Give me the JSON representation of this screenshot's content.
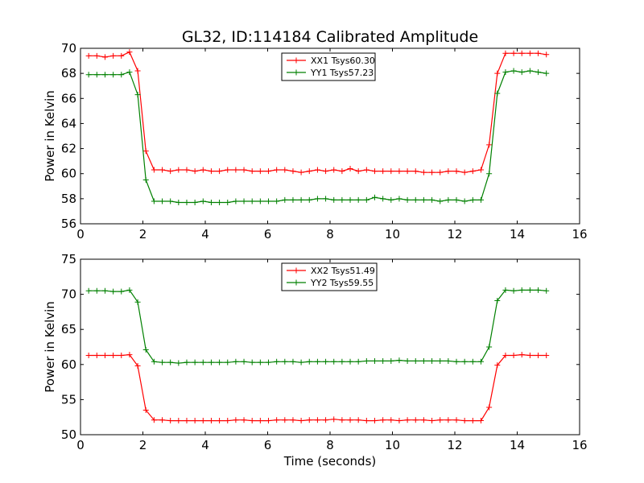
{
  "figure": {
    "title": "GL32, ID:114184 Calibrated Amplitude",
    "xlabel": "Time (seconds)"
  },
  "chart_data": [
    {
      "type": "line",
      "ylabel": "Power in Kelvin",
      "xlim": [
        0,
        16
      ],
      "ylim": [
        56,
        70
      ],
      "xticks": [
        0,
        2,
        4,
        6,
        8,
        10,
        12,
        14,
        16
      ],
      "yticks": [
        56,
        58,
        60,
        62,
        64,
        66,
        68,
        70
      ],
      "legend_position": "top-center",
      "grid": false,
      "x": [
        0.262,
        0.524,
        0.786,
        1.048,
        1.31,
        1.572,
        1.834,
        2.096,
        2.358,
        2.62,
        2.882,
        3.144,
        3.406,
        3.668,
        3.93,
        4.192,
        4.454,
        4.716,
        4.978,
        5.24,
        5.502,
        5.764,
        6.026,
        6.288,
        6.55,
        6.812,
        7.074,
        7.336,
        7.598,
        7.86,
        8.122,
        8.384,
        8.646,
        8.908,
        9.17,
        9.432,
        9.694,
        9.956,
        10.218,
        10.48,
        10.742,
        11.004,
        11.266,
        11.528,
        11.79,
        12.052,
        12.314,
        12.576,
        12.838,
        13.1,
        13.362,
        13.624,
        13.886,
        14.148,
        14.41,
        14.672,
        14.934
      ],
      "series": [
        {
          "name": "XX1 Tsys60.30",
          "color": "#ff0000",
          "values": [
            69.4,
            69.4,
            69.3,
            69.4,
            69.4,
            69.7,
            68.2,
            61.8,
            60.3,
            60.3,
            60.2,
            60.3,
            60.3,
            60.2,
            60.3,
            60.2,
            60.2,
            60.3,
            60.3,
            60.3,
            60.2,
            60.2,
            60.2,
            60.3,
            60.3,
            60.2,
            60.1,
            60.2,
            60.3,
            60.2,
            60.3,
            60.2,
            60.4,
            60.2,
            60.3,
            60.2,
            60.2,
            60.2,
            60.2,
            60.2,
            60.2,
            60.1,
            60.1,
            60.1,
            60.2,
            60.2,
            60.1,
            60.2,
            60.3,
            62.3,
            68.0,
            69.6,
            69.6,
            69.6,
            69.6,
            69.6,
            69.5
          ]
        },
        {
          "name": "YY1 Tsys57.23",
          "color": "#008000",
          "values": [
            67.9,
            67.9,
            67.9,
            67.9,
            67.9,
            68.1,
            66.3,
            59.5,
            57.8,
            57.8,
            57.8,
            57.7,
            57.7,
            57.7,
            57.8,
            57.7,
            57.7,
            57.7,
            57.8,
            57.8,
            57.8,
            57.8,
            57.8,
            57.8,
            57.9,
            57.9,
            57.9,
            57.9,
            58.0,
            58.0,
            57.9,
            57.9,
            57.9,
            57.9,
            57.9,
            58.1,
            58.0,
            57.9,
            58.0,
            57.9,
            57.9,
            57.9,
            57.9,
            57.8,
            57.9,
            57.9,
            57.8,
            57.9,
            57.9,
            60.0,
            66.4,
            68.1,
            68.2,
            68.1,
            68.2,
            68.1,
            68.0
          ]
        }
      ]
    },
    {
      "type": "line",
      "ylabel": "Power in Kelvin",
      "xlabel": "Time (seconds)",
      "xlim": [
        0,
        16
      ],
      "ylim": [
        50,
        75
      ],
      "xticks": [
        0,
        2,
        4,
        6,
        8,
        10,
        12,
        14,
        16
      ],
      "yticks": [
        50,
        55,
        60,
        65,
        70,
        75
      ],
      "legend_position": "top-center",
      "grid": false,
      "x": [
        0.262,
        0.524,
        0.786,
        1.048,
        1.31,
        1.572,
        1.834,
        2.096,
        2.358,
        2.62,
        2.882,
        3.144,
        3.406,
        3.668,
        3.93,
        4.192,
        4.454,
        4.716,
        4.978,
        5.24,
        5.502,
        5.764,
        6.026,
        6.288,
        6.55,
        6.812,
        7.074,
        7.336,
        7.598,
        7.86,
        8.122,
        8.384,
        8.646,
        8.908,
        9.17,
        9.432,
        9.694,
        9.956,
        10.218,
        10.48,
        10.742,
        11.004,
        11.266,
        11.528,
        11.79,
        12.052,
        12.314,
        12.576,
        12.838,
        13.1,
        13.362,
        13.624,
        13.886,
        14.148,
        14.41,
        14.672,
        14.934
      ],
      "series": [
        {
          "name": "XX2 Tsys51.49",
          "color": "#ff0000",
          "values": [
            61.3,
            61.3,
            61.3,
            61.3,
            61.3,
            61.4,
            59.8,
            53.5,
            52.1,
            52.1,
            52.0,
            52.0,
            52.0,
            52.0,
            52.0,
            52.0,
            52.0,
            52.0,
            52.1,
            52.1,
            52.0,
            52.0,
            52.0,
            52.1,
            52.1,
            52.1,
            52.0,
            52.1,
            52.1,
            52.1,
            52.2,
            52.1,
            52.1,
            52.1,
            52.0,
            52.0,
            52.1,
            52.1,
            52.0,
            52.1,
            52.1,
            52.1,
            52.0,
            52.1,
            52.1,
            52.1,
            52.0,
            52.0,
            52.0,
            53.9,
            59.9,
            61.3,
            61.3,
            61.4,
            61.3,
            61.3,
            61.3
          ]
        },
        {
          "name": "YY2 Tsys59.55",
          "color": "#008000",
          "values": [
            70.5,
            70.5,
            70.5,
            70.4,
            70.4,
            70.6,
            68.9,
            62.1,
            60.4,
            60.3,
            60.3,
            60.2,
            60.3,
            60.3,
            60.3,
            60.3,
            60.3,
            60.3,
            60.4,
            60.4,
            60.3,
            60.3,
            60.3,
            60.4,
            60.4,
            60.4,
            60.3,
            60.4,
            60.4,
            60.4,
            60.4,
            60.4,
            60.4,
            60.4,
            60.5,
            60.5,
            60.5,
            60.5,
            60.6,
            60.5,
            60.5,
            60.5,
            60.5,
            60.5,
            60.5,
            60.4,
            60.4,
            60.4,
            60.4,
            62.5,
            69.1,
            70.6,
            70.5,
            70.6,
            70.6,
            70.6,
            70.5
          ]
        }
      ]
    }
  ]
}
